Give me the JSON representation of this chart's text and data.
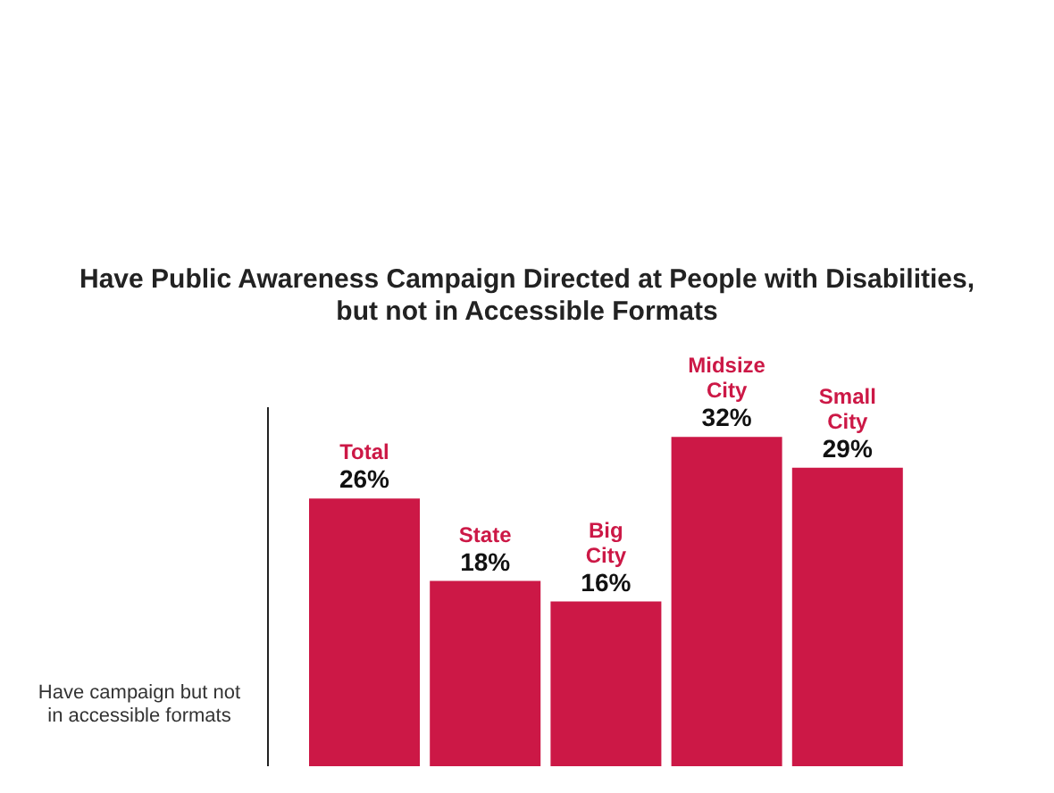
{
  "chart_data": {
    "type": "bar",
    "title": "Have Public Awareness Campaign Directed at People with Disabilities, but not in Accessible Formats",
    "xlabel": "Have campaign but not in accessible formats",
    "categories": [
      "Total",
      "State",
      "Big City",
      "Midsize City",
      "Small City"
    ],
    "values": [
      26,
      18,
      16,
      32,
      29
    ],
    "color": "#cc1846",
    "value_labels": [
      "26%",
      "18%",
      "16%",
      "32%",
      "29%"
    ],
    "tick_labels": false
  }
}
